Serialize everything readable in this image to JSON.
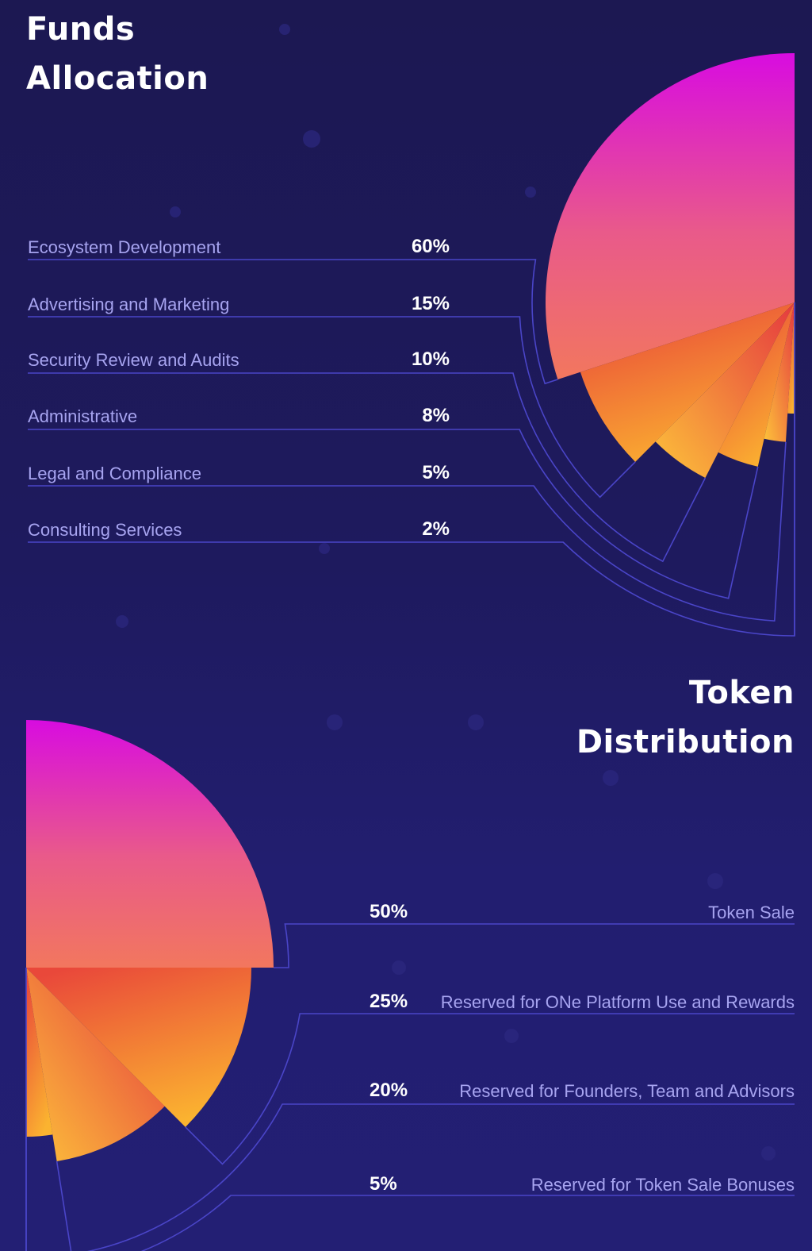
{
  "colors": {
    "background": "#1e1a5e",
    "line": "#4a45c8",
    "label": "#a7a4f0",
    "magenta": "#d80ce0",
    "coral": "#f07060",
    "red_orange": "#e9483a",
    "amber": "#fbb330"
  },
  "chart_data": [
    {
      "type": "pie",
      "title": "Funds Allocation",
      "title_lines": [
        "Funds",
        "Allocation"
      ],
      "labels": [
        "Ecosystem Development",
        "Advertising and Marketing",
        "Security Review and Audits",
        "Administrative",
        "Legal and Compliance",
        "Consulting Services"
      ],
      "values": [
        60,
        15,
        10,
        8,
        5,
        2
      ],
      "value_labels": [
        "60%",
        "15%",
        "10%",
        "8%",
        "5%",
        "2%"
      ]
    },
    {
      "type": "pie",
      "title": "Token Distribution",
      "title_lines": [
        "Token",
        "Distribution"
      ],
      "labels": [
        "Token Sale",
        "Reserved for ONe Platform Use and Rewards",
        "Reserved for Founders, Team and Advisors",
        "Reserved for Token Sale Bonuses"
      ],
      "values": [
        50,
        25,
        20,
        5
      ],
      "value_labels": [
        "50%",
        "25%",
        "20%",
        "5%"
      ]
    }
  ]
}
